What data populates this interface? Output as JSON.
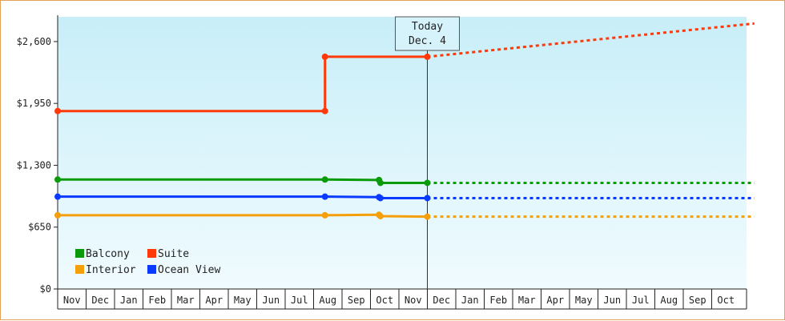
{
  "chart_data": {
    "type": "line",
    "title": "",
    "xlabel": "",
    "ylabel": "",
    "ylim": [
      0,
      2860
    ],
    "y_ticks": [
      {
        "value": 0,
        "label": "$0"
      },
      {
        "value": 650,
        "label": "$650"
      },
      {
        "value": 1300,
        "label": "$1,300"
      },
      {
        "value": 1950,
        "label": "$1,950"
      },
      {
        "value": 2600,
        "label": "$2,600"
      }
    ],
    "x_range": [
      0,
      24.5
    ],
    "months": [
      "Nov",
      "Dec",
      "Jan",
      "Feb",
      "Mar",
      "Apr",
      "May",
      "Jun",
      "Jul",
      "Aug",
      "Sep",
      "Oct",
      "Nov",
      "Dec",
      "Jan",
      "Feb",
      "Mar",
      "Apr",
      "May",
      "Jun",
      "Jul",
      "Aug",
      "Sep",
      "Oct"
    ],
    "today": {
      "x": 13,
      "line1": "Today",
      "line2": "Dec. 4"
    },
    "legend": {
      "position": "bottom-left"
    },
    "series": [
      {
        "name": "Balcony",
        "color": "#0a9a0a",
        "points": [
          [
            0,
            1150
          ],
          [
            9.4,
            1150
          ],
          [
            11.3,
            1145
          ],
          [
            11.35,
            1115
          ],
          [
            13,
            1115
          ]
        ],
        "forecast": [
          [
            13,
            1115
          ],
          [
            24.5,
            1115
          ]
        ]
      },
      {
        "name": "Suite",
        "color": "#ff3a0a",
        "points": [
          [
            0,
            1870
          ],
          [
            9.4,
            1870
          ],
          [
            9.4,
            2440
          ],
          [
            13,
            2440
          ]
        ],
        "forecast": [
          [
            13,
            2440
          ],
          [
            24.5,
            2790
          ]
        ]
      },
      {
        "name": "Interior",
        "color": "#f5a00a",
        "points": [
          [
            0,
            775
          ],
          [
            9.4,
            775
          ],
          [
            11.3,
            780
          ],
          [
            11.35,
            765
          ],
          [
            13,
            760
          ]
        ],
        "forecast": [
          [
            13,
            760
          ],
          [
            24.5,
            760
          ]
        ]
      },
      {
        "name": "Ocean View",
        "color": "#0a3aff",
        "points": [
          [
            0,
            970
          ],
          [
            9.4,
            970
          ],
          [
            11.3,
            965
          ],
          [
            11.35,
            955
          ],
          [
            13,
            955
          ]
        ],
        "forecast": [
          [
            13,
            955
          ],
          [
            24.5,
            955
          ]
        ]
      }
    ]
  }
}
